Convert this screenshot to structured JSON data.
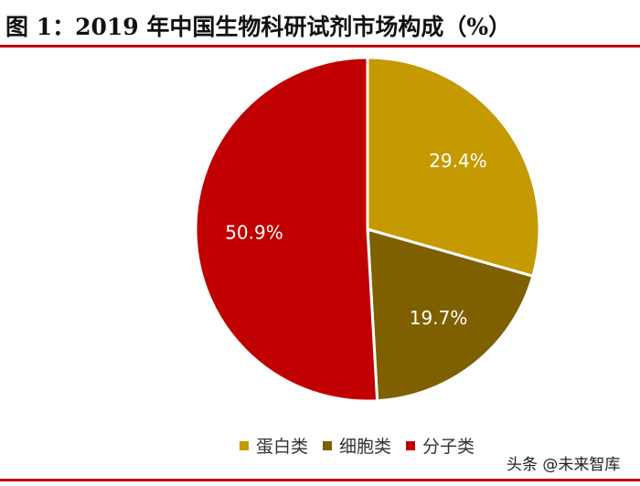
{
  "title": "图 1：2019 年中国生物科研试剂市场构成（%）",
  "chart_data": {
    "type": "pie",
    "title": "图 1：2019 年中国生物科研试剂市场构成（%）",
    "slices": [
      {
        "name": "蛋白类",
        "value": 29.4,
        "label": "29.4%",
        "color": "#c49a00"
      },
      {
        "name": "细胞类",
        "value": 19.7,
        "label": "19.7%",
        "color": "#7f6000"
      },
      {
        "name": "分子类",
        "value": 50.9,
        "label": "50.9%",
        "color": "#c00000"
      }
    ],
    "legend_position": "bottom",
    "start": "12 o'clock, clockwise"
  },
  "watermark": "头条 @未来智库"
}
